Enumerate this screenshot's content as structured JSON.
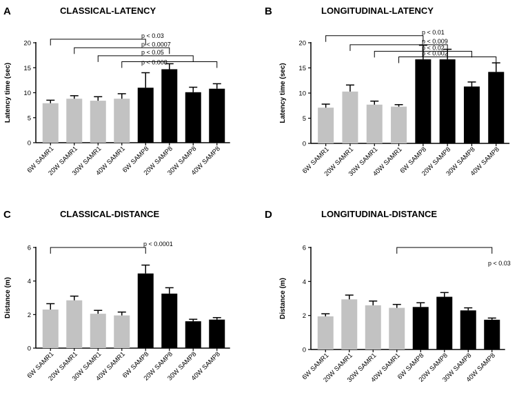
{
  "colors": {
    "samr1": "#c2c2c2",
    "samp8": "#000000",
    "axis": "#000000"
  },
  "chart_data": [
    {
      "type": "bar",
      "panel_letter": "A",
      "title": "CLASSICAL-LATENCY",
      "ylabel": "Latency time (sec)",
      "xlabel": "",
      "ylim": [
        0,
        20
      ],
      "yticks": [
        0,
        5,
        10,
        15,
        20
      ],
      "categories": [
        "6W SAMR1",
        "20W SAMR1",
        "30W SAMR1",
        "40W SAMR1",
        "6W SAMP8",
        "20W SAMP8",
        "30W SAMP8",
        "40W SAMP8"
      ],
      "groups": [
        "SAMR1",
        "SAMR1",
        "SAMR1",
        "SAMR1",
        "SAMP8",
        "SAMP8",
        "SAMP8",
        "SAMP8"
      ],
      "values": [
        7.9,
        8.8,
        8.4,
        8.8,
        11.0,
        14.7,
        10.1,
        10.8
      ],
      "errors": [
        0.6,
        0.6,
        0.8,
        1.0,
        3.0,
        1.1,
        1.0,
        1.0
      ],
      "significance": [
        {
          "from": 0,
          "to": 4,
          "y": 20.7,
          "label": "p < 0.03"
        },
        {
          "from": 1,
          "to": 5,
          "y": 19.0,
          "label": "p < 0.0007"
        },
        {
          "from": 2,
          "to": 6,
          "y": 17.4,
          "label": "p < 0.05"
        },
        {
          "from": 3,
          "to": 7,
          "y": 16.2,
          "label": "p < 0.008"
        }
      ]
    },
    {
      "type": "bar",
      "panel_letter": "B",
      "title": "LONGITUDINAL-LATENCY",
      "ylabel": "Latency time (sec)",
      "xlabel": "",
      "ylim": [
        0,
        20
      ],
      "yticks": [
        0,
        5,
        10,
        15,
        20
      ],
      "categories": [
        "6W SAMR1",
        "20W SAMR1",
        "30W SAMR1",
        "40W SAMR1",
        "6W SAMP8",
        "20W SAMP8",
        "30W SAMP8",
        "40W SAMP8"
      ],
      "groups": [
        "SAMR1",
        "SAMR1",
        "SAMR1",
        "SAMR1",
        "SAMP8",
        "SAMP8",
        "SAMP8",
        "SAMP8"
      ],
      "values": [
        7.1,
        10.3,
        7.7,
        7.3,
        16.7,
        16.7,
        11.3,
        14.2
      ],
      "errors": [
        0.7,
        1.3,
        0.7,
        0.4,
        2.8,
        2.0,
        0.9,
        1.8
      ],
      "significance": [
        {
          "from": 0,
          "to": 4,
          "y": 21.4,
          "label": "p < 0.01"
        },
        {
          "from": 1,
          "to": 5,
          "y": 19.6,
          "label": "p < 0.009"
        },
        {
          "from": 2,
          "to": 6,
          "y": 18.3,
          "label": "p < 0.02"
        },
        {
          "from": 3,
          "to": 7,
          "y": 17.2,
          "label": "p < 0.002"
        }
      ]
    },
    {
      "type": "bar",
      "panel_letter": "C",
      "title": "CLASSICAL-DISTANCE",
      "ylabel": "Distance (m)",
      "xlabel": "",
      "ylim": [
        0,
        6
      ],
      "yticks": [
        0,
        2,
        4,
        6
      ],
      "categories": [
        "6W SAMR1",
        "20W SAMR1",
        "30W SAMR1",
        "40W SAMR1",
        "6W SAMP8",
        "20W SAMP8",
        "30W SAMP8",
        "40W SAMP8"
      ],
      "groups": [
        "SAMR1",
        "SAMR1",
        "SAMR1",
        "SAMR1",
        "SAMP8",
        "SAMP8",
        "SAMP8",
        "SAMP8"
      ],
      "values": [
        2.3,
        2.85,
        2.05,
        1.95,
        4.45,
        3.25,
        1.6,
        1.7
      ],
      "errors": [
        0.35,
        0.25,
        0.2,
        0.2,
        0.5,
        0.35,
        0.12,
        0.12
      ],
      "significance": [
        {
          "from": 0,
          "to": 4,
          "y": 6.0,
          "label": "p < 0.0001"
        }
      ]
    },
    {
      "type": "bar",
      "panel_letter": "D",
      "title": "LONGITUDINAL-DISTANCE",
      "ylabel": "Distance (m)",
      "xlabel": "",
      "ylim": [
        0,
        6
      ],
      "yticks": [
        0,
        2,
        4,
        6
      ],
      "categories": [
        "6W SAMR1",
        "20W SAMR1",
        "30W SAMR1",
        "40W SAMR1",
        "6W SAMP8",
        "20W SAMP8",
        "30W SAMP8",
        "40W SAMP8"
      ],
      "groups": [
        "SAMR1",
        "SAMR1",
        "SAMR1",
        "SAMR1",
        "SAMP8",
        "SAMP8",
        "SAMP8",
        "SAMP8"
      ],
      "values": [
        1.95,
        2.95,
        2.6,
        2.45,
        2.5,
        3.1,
        2.3,
        1.75
      ],
      "errors": [
        0.15,
        0.25,
        0.25,
        0.2,
        0.25,
        0.25,
        0.15,
        0.1
      ],
      "significance": [
        {
          "from": 3,
          "to": 7,
          "y": 6.0,
          "label": "p < 0.03"
        }
      ]
    }
  ]
}
